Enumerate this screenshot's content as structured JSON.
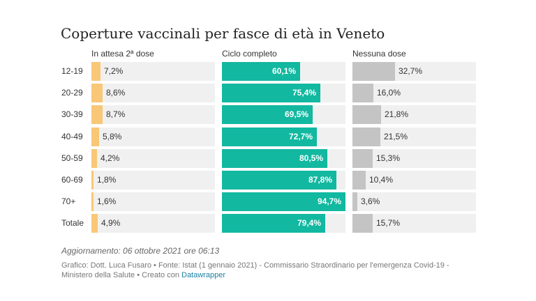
{
  "title": "Coperture vaccinali per fasce di età in Veneto",
  "notes": "Aggiornamento: 06 ottobre 2021 ore 06:13",
  "source": {
    "text": "Grafico: Dott. Luca Fusaro • Fonte: Istat (1 gennaio 2021) - Commissario Straordinario per l'emergenza Covid-19 - Ministero della Salute • Creato con ",
    "link": "Datawrapper"
  },
  "colors": {
    "in_attesa": "#f8c777",
    "ciclo_completo": "#12b8a0",
    "nessuna_dose": "#c4c4c4",
    "track": "#f0f0f0"
  },
  "chart_data": {
    "type": "bar",
    "title": "Coperture vaccinali per fasce di età in Veneto",
    "categories": [
      "12-19",
      "20-29",
      "30-39",
      "40-49",
      "50-59",
      "60-69",
      "70+",
      "Totale"
    ],
    "series": [
      {
        "name": "In attesa 2ª dose",
        "values": [
          7.2,
          8.6,
          8.7,
          5.8,
          4.2,
          1.8,
          1.6,
          4.9
        ],
        "labels": [
          "7,2%",
          "8,6%",
          "8,7%",
          "5,8%",
          "4,2%",
          "1,8%",
          "1,6%",
          "4,9%"
        ]
      },
      {
        "name": "Ciclo completo",
        "values": [
          60.1,
          75.4,
          69.5,
          72.7,
          80.5,
          87.8,
          94.7,
          79.4
        ],
        "labels": [
          "60,1%",
          "75,4%",
          "69,5%",
          "72,7%",
          "80,5%",
          "87,8%",
          "94,7%",
          "79,4%"
        ]
      },
      {
        "name": "Nessuna dose",
        "values": [
          32.7,
          16.0,
          21.8,
          21.5,
          15.3,
          10.4,
          3.6,
          15.7
        ],
        "labels": [
          "32,7%",
          "16,0%",
          "21,8%",
          "21,5%",
          "15,3%",
          "10,4%",
          "3,6%",
          "15,7%"
        ]
      }
    ],
    "xlim": [
      0,
      100
    ],
    "grid": false,
    "legend": "column headers"
  }
}
